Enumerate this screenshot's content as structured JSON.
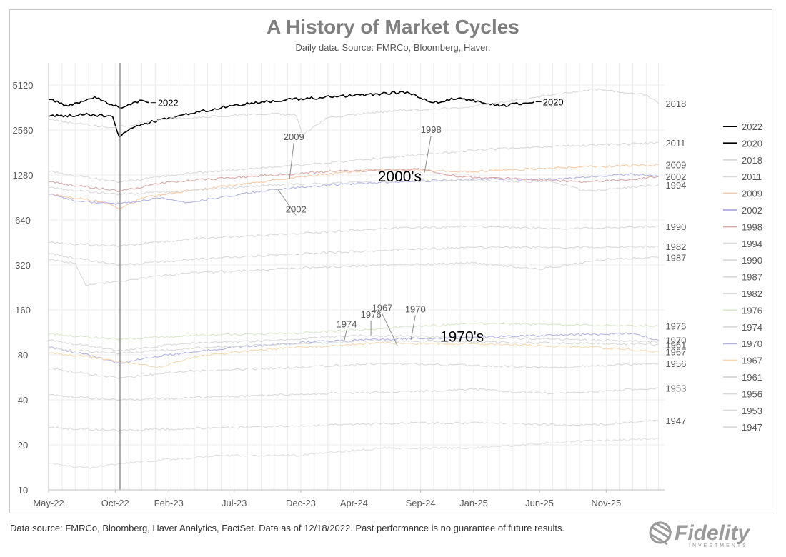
{
  "title": "A History of Market Cycles",
  "subtitle": "Daily data.  Source: FMRCo, Bloomberg, Haver.",
  "footnote": "Data source: FMRCo, Bloomberg, Haver Analytics, FactSet. Data as of 12/18/2022. Past performance is no guarantee of future results.",
  "logo": {
    "text": "Fidelity",
    "subtext": "INVESTMENTS",
    "color": "#9a9a9a"
  },
  "chart_data": {
    "type": "line",
    "yscale": "log2",
    "ylim": [
      10,
      7200
    ],
    "yticks": [
      10,
      20,
      40,
      80,
      160,
      320,
      640,
      1280,
      2560,
      5120
    ],
    "xticks": [
      "May-22",
      "Oct-22",
      "Feb-23",
      "Jul-23",
      "Dec-23",
      "Apr-24",
      "Sep-24",
      "Jan-25",
      "Jun-25",
      "Nov-25"
    ],
    "xlim": [
      "2022-05-01",
      "2026-03-15"
    ],
    "grid": true,
    "vertical_marker": "2022-10-12",
    "legend_position": "right",
    "legend": [
      {
        "name": "2022",
        "color": "#000000"
      },
      {
        "name": "2020",
        "color": "#000000"
      },
      {
        "name": "2018",
        "color": "#d9d9d9"
      },
      {
        "name": "2011",
        "color": "#d9d9d9"
      },
      {
        "name": "2009",
        "color": "#f6c9a6"
      },
      {
        "name": "2002",
        "color": "#b3b3e6"
      },
      {
        "name": "1998",
        "color": "#d9a6a6"
      },
      {
        "name": "1994",
        "color": "#d9d9d9"
      },
      {
        "name": "1990",
        "color": "#d9d9d9"
      },
      {
        "name": "1987",
        "color": "#d9d9d9"
      },
      {
        "name": "1982",
        "color": "#d9d9d9"
      },
      {
        "name": "1976",
        "color": "#d9e6c9"
      },
      {
        "name": "1974",
        "color": "#d9d9d9"
      },
      {
        "name": "1970",
        "color": "#b3b3e6"
      },
      {
        "name": "1967",
        "color": "#f6d9b3"
      },
      {
        "name": "1961",
        "color": "#d9d9d9"
      },
      {
        "name": "1956",
        "color": "#d9d9d9"
      },
      {
        "name": "1953",
        "color": "#d9d9d9"
      },
      {
        "name": "1947",
        "color": "#d9d9d9"
      }
    ],
    "series": [
      {
        "name": "2022",
        "color": "#000000",
        "dark": true,
        "end_label": "2022",
        "points": [
          [
            "2022-05-01",
            4100
          ],
          [
            "2022-06-15",
            3700
          ],
          [
            "2022-08-15",
            4270
          ],
          [
            "2022-10-12",
            3600
          ],
          [
            "2022-12-01",
            4050
          ],
          [
            "2022-12-18",
            3900
          ]
        ]
      },
      {
        "name": "2020",
        "color": "#000000",
        "dark": true,
        "end_label": "2020",
        "points": [
          [
            "2022-05-01",
            3150
          ],
          [
            "2022-08-01",
            3250
          ],
          [
            "2022-09-25",
            3150
          ],
          [
            "2022-10-10",
            2300
          ],
          [
            "2022-11-20",
            2750
          ],
          [
            "2023-02-01",
            3100
          ],
          [
            "2023-07-01",
            3750
          ],
          [
            "2023-12-01",
            4150
          ],
          [
            "2024-04-01",
            4350
          ],
          [
            "2024-08-01",
            4600
          ],
          [
            "2024-10-01",
            3900
          ],
          [
            "2024-12-01",
            4200
          ],
          [
            "2025-03-01",
            3700
          ],
          [
            "2025-05-20",
            3950
          ]
        ]
      },
      {
        "name": "2018",
        "color": "#d9d9d9",
        "end_label": "2018",
        "points": [
          [
            "2022-05-01",
            3000
          ],
          [
            "2022-09-25",
            2650
          ],
          [
            "2022-10-12",
            2700
          ],
          [
            "2023-02-01",
            3050
          ],
          [
            "2023-10-01",
            3300
          ],
          [
            "2023-11-20",
            3200
          ],
          [
            "2023-12-05",
            2400
          ],
          [
            "2024-02-01",
            3100
          ],
          [
            "2024-07-01",
            3450
          ],
          [
            "2024-12-01",
            3600
          ],
          [
            "2025-07-01",
            4400
          ],
          [
            "2025-10-01",
            4800
          ],
          [
            "2026-02-01",
            4400
          ],
          [
            "2026-03-01",
            3850
          ]
        ]
      },
      {
        "name": "2011",
        "color": "#d9d9d9",
        "end_label": "2011",
        "points": [
          [
            "2022-05-01",
            1350
          ],
          [
            "2022-10-12",
            1150
          ],
          [
            "2023-03-01",
            1300
          ],
          [
            "2023-10-01",
            1450
          ],
          [
            "2024-04-01",
            1600
          ],
          [
            "2024-09-01",
            1750
          ],
          [
            "2025-02-01",
            1900
          ],
          [
            "2025-08-01",
            2000
          ],
          [
            "2026-03-01",
            2100
          ]
        ]
      },
      {
        "name": "2009",
        "color": "#f6c9a6",
        "end_label": "2009",
        "points": [
          [
            "2022-05-01",
            950
          ],
          [
            "2022-09-01",
            850
          ],
          [
            "2022-10-12",
            760
          ],
          [
            "2022-12-01",
            900
          ],
          [
            "2023-04-01",
            1020
          ],
          [
            "2023-09-01",
            1150
          ],
          [
            "2023-12-01",
            1250
          ],
          [
            "2024-06-01",
            1400
          ],
          [
            "2025-01-01",
            1350
          ],
          [
            "2025-09-01",
            1450
          ],
          [
            "2026-03-01",
            1500
          ]
        ]
      },
      {
        "name": "2002",
        "color": "#b3b3e6",
        "end_label": "2002",
        "points": [
          [
            "2022-05-01",
            950
          ],
          [
            "2022-07-15",
            850
          ],
          [
            "2022-10-12",
            820
          ],
          [
            "2023-01-15",
            900
          ],
          [
            "2023-03-15",
            840
          ],
          [
            "2023-09-01",
            1000
          ],
          [
            "2024-02-01",
            1100
          ],
          [
            "2024-07-01",
            1150
          ],
          [
            "2025-01-01",
            1200
          ],
          [
            "2025-07-01",
            1200
          ],
          [
            "2026-01-01",
            1300
          ],
          [
            "2026-03-01",
            1250
          ]
        ]
      },
      {
        "name": "1998",
        "color": "#d9a6a6",
        "end_label": "",
        "points": [
          [
            "2022-05-01",
            1150
          ],
          [
            "2022-10-12",
            1000
          ],
          [
            "2023-02-01",
            1150
          ],
          [
            "2023-08-01",
            1250
          ],
          [
            "2024-02-01",
            1350
          ],
          [
            "2024-09-01",
            1400
          ],
          [
            "2024-12-01",
            1250
          ],
          [
            "2025-05-01",
            1200
          ],
          [
            "2025-09-01",
            1150
          ],
          [
            "2026-01-01",
            1200
          ],
          [
            "2026-03-01",
            1250
          ]
        ]
      },
      {
        "name": "1994",
        "color": "#d9d9d9",
        "end_label": "1994",
        "points": [
          [
            "2022-05-01",
            1050
          ],
          [
            "2022-10-12",
            950
          ],
          [
            "2023-03-01",
            1000
          ],
          [
            "2023-10-01",
            1100
          ],
          [
            "2024-05-01",
            1150
          ],
          [
            "2024-12-01",
            1180
          ],
          [
            "2025-07-01",
            1150
          ],
          [
            "2025-09-15",
            1000
          ],
          [
            "2026-03-01",
            1100
          ]
        ]
      },
      {
        "name": "1990",
        "color": "#d9d9d9",
        "end_label": "1990",
        "points": [
          [
            "2022-05-01",
            450
          ],
          [
            "2022-10-12",
            430
          ],
          [
            "2023-04-01",
            480
          ],
          [
            "2023-12-01",
            520
          ],
          [
            "2024-06-01",
            560
          ],
          [
            "2025-01-01",
            580
          ],
          [
            "2025-07-01",
            560
          ],
          [
            "2026-03-01",
            580
          ]
        ]
      },
      {
        "name": "1987",
        "color": "#d9d9d9",
        "end_label": "1987",
        "points": [
          [
            "2022-05-01",
            345
          ],
          [
            "2022-07-01",
            330
          ],
          [
            "2022-07-25",
            235
          ],
          [
            "2022-10-12",
            250
          ],
          [
            "2023-03-01",
            280
          ],
          [
            "2023-10-01",
            300
          ],
          [
            "2024-06-01",
            320
          ],
          [
            "2025-01-01",
            330
          ],
          [
            "2025-06-01",
            300
          ],
          [
            "2025-11-01",
            350
          ],
          [
            "2026-03-01",
            360
          ]
        ]
      },
      {
        "name": "1982",
        "color": "#d9d9d9",
        "end_label": "1982",
        "points": [
          [
            "2022-05-01",
            380
          ],
          [
            "2022-10-12",
            320
          ],
          [
            "2023-04-01",
            350
          ],
          [
            "2023-12-01",
            380
          ],
          [
            "2024-06-01",
            400
          ],
          [
            "2025-01-01",
            420
          ],
          [
            "2025-07-01",
            420
          ],
          [
            "2026-03-01",
            425
          ]
        ]
      },
      {
        "name": "1976",
        "color": "#d9e6c9",
        "end_label": "1976",
        "points": [
          [
            "2022-05-01",
            110
          ],
          [
            "2022-10-12",
            102
          ],
          [
            "2023-04-01",
            108
          ],
          [
            "2023-12-01",
            112
          ],
          [
            "2024-06-01",
            120
          ],
          [
            "2025-01-01",
            130
          ],
          [
            "2025-07-01",
            128
          ],
          [
            "2026-03-01",
            125
          ]
        ]
      },
      {
        "name": "1974",
        "color": "#d9d9d9",
        "end_label": "",
        "points": [
          [
            "2022-05-01",
            100
          ],
          [
            "2022-08-01",
            92
          ],
          [
            "2022-10-12",
            85
          ],
          [
            "2023-03-01",
            95
          ],
          [
            "2023-10-01",
            100
          ],
          [
            "2024-04-01",
            108
          ],
          [
            "2024-12-01",
            105
          ],
          [
            "2025-07-01",
            102
          ],
          [
            "2026-03-01",
            98
          ]
        ]
      },
      {
        "name": "1970",
        "color": "#b3b3e6",
        "end_label": "1970",
        "points": [
          [
            "2022-05-01",
            90
          ],
          [
            "2022-08-01",
            80
          ],
          [
            "2022-10-12",
            70
          ],
          [
            "2023-01-01",
            78
          ],
          [
            "2023-07-01",
            90
          ],
          [
            "2024-01-01",
            98
          ],
          [
            "2024-07-01",
            102
          ],
          [
            "2025-01-01",
            105
          ],
          [
            "2025-07-01",
            108
          ],
          [
            "2026-01-01",
            112
          ],
          [
            "2026-03-01",
            100
          ]
        ]
      },
      {
        "name": "1967",
        "color": "#f6d9b3",
        "end_label": "1967",
        "points": [
          [
            "2022-05-01",
            82
          ],
          [
            "2022-08-01",
            78
          ],
          [
            "2022-10-12",
            72
          ],
          [
            "2023-01-15",
            66
          ],
          [
            "2023-04-01",
            78
          ],
          [
            "2023-10-01",
            88
          ],
          [
            "2024-06-01",
            96
          ],
          [
            "2025-03-01",
            94
          ],
          [
            "2025-10-01",
            90
          ],
          [
            "2026-03-01",
            84
          ]
        ]
      },
      {
        "name": "1961",
        "color": "#d9d9d9",
        "end_label": "1961",
        "points": [
          [
            "2022-05-01",
            88
          ],
          [
            "2022-10-12",
            82
          ],
          [
            "2023-05-01",
            90
          ],
          [
            "2023-12-01",
            95
          ],
          [
            "2024-06-01",
            100
          ],
          [
            "2025-01-01",
            98
          ],
          [
            "2025-07-01",
            96
          ],
          [
            "2026-03-01",
            94
          ]
        ]
      },
      {
        "name": "1956",
        "color": "#d9d9d9",
        "end_label": "1956",
        "points": [
          [
            "2022-05-01",
            65
          ],
          [
            "2022-09-01",
            58
          ],
          [
            "2022-10-12",
            56
          ],
          [
            "2023-03-01",
            62
          ],
          [
            "2023-12-01",
            66
          ],
          [
            "2024-06-01",
            70
          ],
          [
            "2025-01-01",
            68
          ],
          [
            "2025-07-01",
            66
          ],
          [
            "2026-03-01",
            70
          ]
        ]
      },
      {
        "name": "1953",
        "color": "#d9d9d9",
        "end_label": "1953",
        "points": [
          [
            "2022-05-01",
            43
          ],
          [
            "2022-10-12",
            40
          ],
          [
            "2023-06-01",
            42
          ],
          [
            "2024-01-01",
            44
          ],
          [
            "2024-07-01",
            45
          ],
          [
            "2025-01-01",
            47
          ],
          [
            "2025-07-01",
            44
          ],
          [
            "2026-03-01",
            48
          ]
        ]
      },
      {
        "name": "1947",
        "color": "#d9d9d9",
        "end_label": "1947",
        "points": [
          [
            "2022-05-01",
            26
          ],
          [
            "2022-10-12",
            25
          ],
          [
            "2023-06-01",
            26
          ],
          [
            "2024-01-01",
            27
          ],
          [
            "2024-08-01",
            28
          ],
          [
            "2025-03-01",
            28
          ],
          [
            "2025-09-01",
            27
          ],
          [
            "2026-03-01",
            29
          ]
        ]
      },
      {
        "name": "bottom-line",
        "color": "#e0e0e0",
        "end_label": "",
        "points": [
          [
            "2022-05-01",
            15
          ],
          [
            "2022-08-01",
            14
          ],
          [
            "2022-10-12",
            15
          ],
          [
            "2023-06-01",
            17
          ],
          [
            "2023-12-01",
            17
          ],
          [
            "2024-06-01",
            19
          ],
          [
            "2025-01-01",
            19
          ],
          [
            "2025-08-01",
            21
          ],
          [
            "2026-03-01",
            22
          ]
        ]
      }
    ],
    "annotations": [
      {
        "text": "2009",
        "label_at": [
          "2023-11-15",
          2200
        ],
        "point": [
          "2023-11-05",
          1200
        ]
      },
      {
        "text": "2002",
        "label_at": [
          "2023-11-20",
          720
        ],
        "point": [
          "2023-10-10",
          1020
        ]
      },
      {
        "text": "1998",
        "label_at": [
          "2024-09-25",
          2450
        ],
        "point": [
          "2024-09-10",
          1330
        ]
      },
      {
        "text": "1974",
        "label_at": [
          "2024-03-15",
          122
        ],
        "point": [
          "2024-03-10",
          100
        ]
      },
      {
        "text": "1976",
        "label_at": [
          "2024-05-10",
          142
        ],
        "point": [
          "2024-05-10",
          108
        ]
      },
      {
        "text": "1967",
        "label_at": [
          "2024-06-05",
          157
        ],
        "point": [
          "2024-07-10",
          92
        ]
      },
      {
        "text": "1970",
        "label_at": [
          "2024-08-20",
          154
        ],
        "point": [
          "2024-08-10",
          101
        ]
      }
    ],
    "big_labels": [
      {
        "text": "2000's",
        "at": [
          "2024-07-15",
          1250
        ]
      },
      {
        "text": "1970's",
        "at": [
          "2024-12-05",
          106
        ]
      }
    ]
  }
}
